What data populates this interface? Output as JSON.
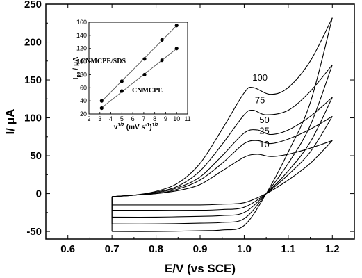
{
  "chart_data": [
    {
      "type": "line",
      "title": "",
      "xlabel": "E/V (vs SCE)",
      "ylabel": "I/ μA",
      "xlim": [
        0.55,
        1.25
      ],
      "ylim": [
        -60,
        250
      ],
      "x_ticks": [
        "0.6",
        "0.7",
        "0.8",
        "0.9",
        "1.0",
        "1.1",
        "1.2"
      ],
      "y_ticks": [
        "-50",
        "0",
        "50",
        "100",
        "150",
        "200",
        "250"
      ],
      "grid": false,
      "series": [
        {
          "name": "10",
          "forward": [
            [
              0.7,
              -4
            ],
            [
              0.75,
              -2
            ],
            [
              0.8,
              0
            ],
            [
              0.85,
              4
            ],
            [
              0.9,
              12
            ],
            [
              0.95,
              30
            ],
            [
              1.0,
              48
            ],
            [
              1.03,
              52
            ],
            [
              1.06,
              49
            ],
            [
              1.1,
              52
            ],
            [
              1.15,
              60
            ],
            [
              1.2,
              70
            ]
          ],
          "reverse": [
            [
              1.2,
              70
            ],
            [
              1.15,
              40
            ],
            [
              1.1,
              18
            ],
            [
              1.05,
              0
            ],
            [
              1.0,
              -12
            ],
            [
              0.95,
              -14
            ],
            [
              0.9,
              -15
            ],
            [
              0.8,
              -15
            ],
            [
              0.7,
              -15
            ]
          ]
        },
        {
          "name": "25",
          "forward": [
            [
              0.7,
              -4
            ],
            [
              0.75,
              -2
            ],
            [
              0.8,
              0
            ],
            [
              0.85,
              6
            ],
            [
              0.9,
              18
            ],
            [
              0.95,
              40
            ],
            [
              1.0,
              66
            ],
            [
              1.03,
              70
            ],
            [
              1.06,
              66
            ],
            [
              1.1,
              72
            ],
            [
              1.15,
              85
            ],
            [
              1.2,
              102
            ]
          ],
          "reverse": [
            [
              1.2,
              102
            ],
            [
              1.15,
              55
            ],
            [
              1.1,
              25
            ],
            [
              1.05,
              0
            ],
            [
              1.0,
              -18
            ],
            [
              0.95,
              -21
            ],
            [
              0.9,
              -22
            ],
            [
              0.8,
              -22
            ],
            [
              0.7,
              -22
            ]
          ]
        },
        {
          "name": "50",
          "forward": [
            [
              0.7,
              -4
            ],
            [
              0.75,
              -2
            ],
            [
              0.8,
              1
            ],
            [
              0.85,
              8
            ],
            [
              0.9,
              22
            ],
            [
              0.95,
              50
            ],
            [
              1.0,
              80
            ],
            [
              1.03,
              84
            ],
            [
              1.06,
              78
            ],
            [
              1.1,
              84
            ],
            [
              1.15,
              102
            ],
            [
              1.2,
              127
            ]
          ],
          "reverse": [
            [
              1.2,
              127
            ],
            [
              1.15,
              68
            ],
            [
              1.1,
              30
            ],
            [
              1.05,
              0
            ],
            [
              1.0,
              -25
            ],
            [
              0.95,
              -29
            ],
            [
              0.9,
              -30
            ],
            [
              0.8,
              -31
            ],
            [
              0.7,
              -31
            ]
          ]
        },
        {
          "name": "75",
          "forward": [
            [
              0.7,
              -4
            ],
            [
              0.75,
              -2
            ],
            [
              0.8,
              2
            ],
            [
              0.85,
              10
            ],
            [
              0.9,
              30
            ],
            [
              0.95,
              65
            ],
            [
              1.0,
              104
            ],
            [
              1.02,
              110
            ],
            [
              1.05,
              104
            ],
            [
              1.1,
              110
            ],
            [
              1.15,
              135
            ],
            [
              1.2,
              170
            ]
          ],
          "reverse": [
            [
              1.2,
              170
            ],
            [
              1.15,
              90
            ],
            [
              1.1,
              40
            ],
            [
              1.05,
              0
            ],
            [
              1.0,
              -33
            ],
            [
              0.95,
              -38
            ],
            [
              0.9,
              -39
            ],
            [
              0.8,
              -40
            ],
            [
              0.7,
              -40
            ]
          ]
        },
        {
          "name": "100",
          "forward": [
            [
              0.7,
              -4
            ],
            [
              0.75,
              -2
            ],
            [
              0.8,
              3
            ],
            [
              0.85,
              14
            ],
            [
              0.9,
              40
            ],
            [
              0.95,
              85
            ],
            [
              1.0,
              133
            ],
            [
              1.02,
              140
            ],
            [
              1.06,
              131
            ],
            [
              1.1,
              140
            ],
            [
              1.15,
              175
            ],
            [
              1.2,
              232
            ]
          ],
          "reverse": [
            [
              1.2,
              232
            ],
            [
              1.15,
              120
            ],
            [
              1.1,
              55
            ],
            [
              1.05,
              0
            ],
            [
              1.0,
              -42
            ],
            [
              0.95,
              -48
            ],
            [
              0.9,
              -49
            ],
            [
              0.8,
              -50
            ],
            [
              0.7,
              -50
            ]
          ]
        }
      ]
    },
    {
      "type": "scatter",
      "title": "",
      "xlabel": "v1/2 (mV s-1)1/2",
      "ylabel": "Ipa / μA",
      "xlim": [
        2,
        11
      ],
      "ylim": [
        20,
        160
      ],
      "x_ticks": [
        "2",
        "3",
        "4",
        "5",
        "6",
        "7",
        "8",
        "9",
        "10",
        "11"
      ],
      "y_ticks": [
        "20",
        "40",
        "60",
        "80",
        "100",
        "120",
        "140",
        "160"
      ],
      "series": [
        {
          "name": "CNMCPE/SDS",
          "x": [
            3.16,
            5.0,
            7.07,
            8.66,
            10.0
          ],
          "y": [
            40,
            70,
            104,
            133,
            155
          ]
        },
        {
          "name": "CNMCPE",
          "x": [
            3.16,
            5.0,
            7.07,
            8.66,
            10.0
          ],
          "y": [
            29,
            55,
            80,
            102,
            120
          ]
        }
      ]
    }
  ]
}
